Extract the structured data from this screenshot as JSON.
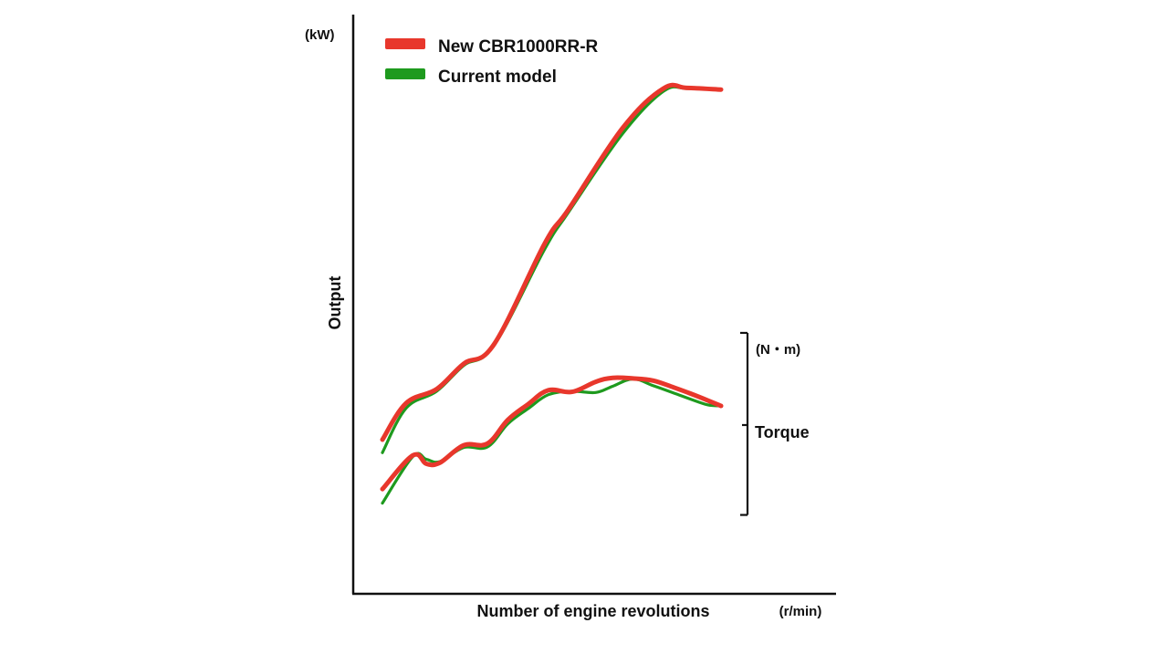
{
  "chart_data": {
    "type": "line",
    "title": "",
    "xlabel": "Number of engine revolutions",
    "xunit": "(r/min)",
    "ylabel": "Output",
    "yunit": "(kW)",
    "secondary_label": "Torque",
    "secondary_unit": "(N・m)",
    "legend_position": "top-left",
    "xlim": [
      0,
      100
    ],
    "ylim": [
      0,
      100
    ],
    "torque_bracket_range": [
      11.6,
      44.0
    ],
    "torque_bracket_mid": 27.6,
    "grid": false,
    "legend": [
      {
        "name": "New CBR1000RR-R",
        "color": "#e8372c"
      },
      {
        "name": "Current model",
        "color": "#1e9a1e"
      }
    ],
    "series": [
      {
        "name": "New CBR1000RR-R",
        "group": "output",
        "color": "#e8372c",
        "x": [
          0,
          7,
          16,
          24,
          33,
          48,
          55,
          71,
          83,
          90,
          100
        ],
        "y": [
          25.0,
          31.5,
          34.0,
          38.5,
          42.0,
          60.0,
          66.0,
          80.5,
          87.5,
          87.6,
          87.3
        ]
      },
      {
        "name": "Current model",
        "group": "output",
        "color": "#1e9a1e",
        "x": [
          0,
          7,
          16,
          24,
          33,
          48,
          55,
          71,
          83,
          90,
          100
        ],
        "y": [
          22.7,
          30.6,
          33.6,
          38.2,
          41.8,
          59.0,
          65.5,
          79.5,
          87.0,
          87.5,
          87.3
        ]
      },
      {
        "name": "New CBR1000RR-R",
        "group": "torque",
        "color": "#e8372c",
        "x": [
          0,
          9,
          13,
          17,
          24,
          31,
          37,
          43,
          49,
          56,
          63,
          68,
          74,
          80,
          86,
          91,
          96,
          100
        ],
        "y": [
          16.2,
          22.2,
          20.7,
          20.9,
          24.0,
          24.3,
          28.5,
          31.3,
          33.8,
          33.5,
          35.3,
          36.0,
          35.9,
          35.5,
          34.3,
          33.2,
          32.0,
          31.0
        ]
      },
      {
        "name": "Current model",
        "group": "torque",
        "color": "#1e9a1e",
        "x": [
          0,
          9,
          13,
          17,
          24,
          31,
          37,
          43,
          49,
          56,
          63,
          68,
          74,
          80,
          86,
          91,
          96,
          100
        ],
        "y": [
          13.7,
          22.0,
          21.5,
          21.1,
          23.6,
          23.7,
          27.8,
          30.5,
          33.0,
          33.6,
          33.4,
          34.5,
          35.8,
          34.6,
          33.3,
          32.2,
          31.2,
          31.0
        ]
      }
    ]
  }
}
